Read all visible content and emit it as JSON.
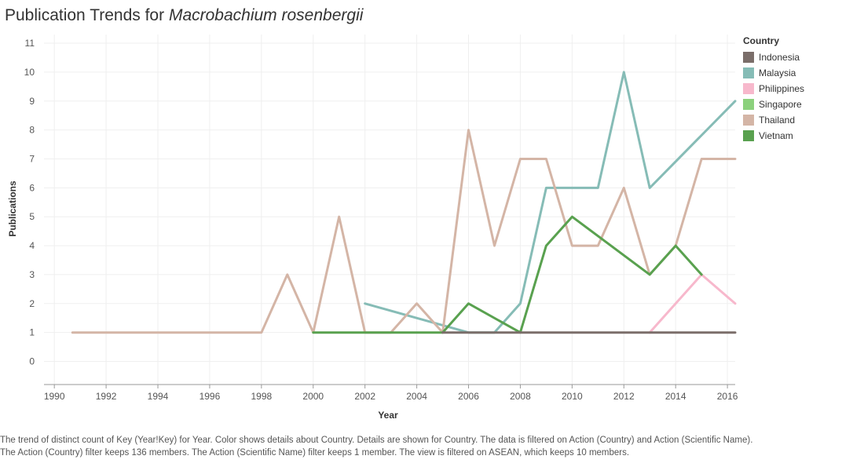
{
  "title_prefix": "Publication Trends for ",
  "title_species": "Macrobachium rosenbergii",
  "caption": "The trend of distinct count of Key (Year!Key) for Year.  Color shows details about Country.  Details are shown for Country. The data is filtered on Action (Country) and Action (Scientific Name). The Action (Country) filter keeps 136 members. The Action (Scientific Name) filter keeps 1 member. The view is filtered on ASEAN, which keeps 10 members.",
  "chart_data": {
    "type": "line",
    "xlabel": "Year",
    "ylabel": "Publications",
    "xlim": [
      1989.6,
      2016.3
    ],
    "ylim": [
      -0.8,
      11.3
    ],
    "x_ticks": [
      1990,
      1992,
      1994,
      1996,
      1998,
      2000,
      2002,
      2004,
      2006,
      2008,
      2010,
      2012,
      2014,
      2016
    ],
    "y_ticks": [
      0,
      1,
      2,
      3,
      4,
      5,
      6,
      7,
      8,
      9,
      10,
      11
    ],
    "grid": true,
    "legend_title": "Country",
    "legend_position": "right",
    "series": [
      {
        "name": "Indonesia",
        "color": "#7b6e6a",
        "points": [
          [
            2005,
            1
          ],
          [
            2006,
            1
          ],
          [
            2007,
            1
          ],
          [
            2008,
            1
          ],
          [
            2009,
            1
          ],
          [
            2010,
            1
          ],
          [
            2011,
            1
          ],
          [
            2012,
            1
          ],
          [
            2013,
            1
          ],
          [
            2014,
            1
          ],
          [
            2015,
            1
          ],
          [
            2016.3,
            1
          ]
        ]
      },
      {
        "name": "Malaysia",
        "color": "#86bcb6",
        "points": [
          [
            2002,
            2
          ],
          [
            2006,
            1
          ],
          [
            2007,
            1
          ],
          [
            2008,
            2
          ],
          [
            2009,
            6
          ],
          [
            2010,
            6
          ],
          [
            2011,
            6
          ],
          [
            2012,
            10
          ],
          [
            2013,
            6
          ],
          [
            2016.3,
            9
          ]
        ]
      },
      {
        "name": "Philippines",
        "color": "#f7b8cc",
        "points": [
          [
            2013,
            1
          ],
          [
            2015,
            3
          ],
          [
            2016.3,
            2
          ]
        ]
      },
      {
        "name": "Singapore",
        "color": "#8cd17d",
        "points": []
      },
      {
        "name": "Thailand",
        "color": "#d4b5a6",
        "points": [
          [
            1990.7,
            1
          ],
          [
            1998,
            1
          ],
          [
            1999,
            3
          ],
          [
            2000,
            1
          ],
          [
            2001,
            5
          ],
          [
            2002,
            1
          ],
          [
            2003,
            1
          ],
          [
            2004,
            2
          ],
          [
            2005,
            1
          ],
          [
            2006,
            8
          ],
          [
            2007,
            4
          ],
          [
            2008,
            7
          ],
          [
            2009,
            7
          ],
          [
            2010,
            4
          ],
          [
            2011,
            4
          ],
          [
            2012,
            6
          ],
          [
            2013,
            3
          ],
          [
            2014,
            4
          ],
          [
            2015,
            7
          ],
          [
            2016.3,
            7
          ]
        ]
      },
      {
        "name": "Vietnam",
        "color": "#59a14f",
        "points": [
          [
            2000,
            1
          ],
          [
            2005,
            1
          ],
          [
            2006,
            2
          ],
          [
            2008,
            1
          ],
          [
            2009,
            4
          ],
          [
            2010,
            5
          ],
          [
            2013,
            3
          ],
          [
            2014,
            4
          ],
          [
            2015,
            3
          ]
        ]
      }
    ]
  }
}
